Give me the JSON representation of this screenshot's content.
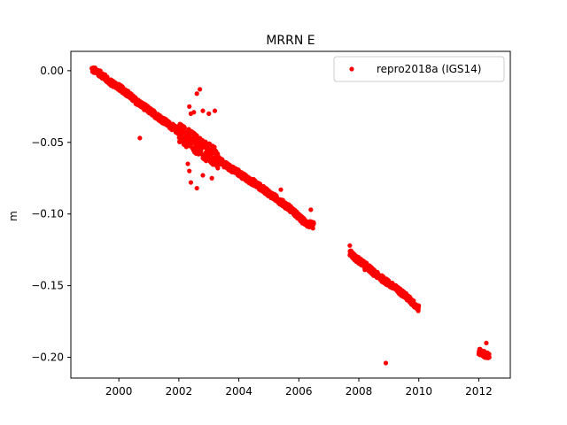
{
  "chart_data": {
    "type": "scatter",
    "title": "MRRN E",
    "xlabel": "",
    "ylabel": "m",
    "xlim": [
      1998.4,
      2013.05
    ],
    "ylim": [
      -0.2145,
      0.0135
    ],
    "xticks": [
      2000,
      2002,
      2004,
      2006,
      2008,
      2010,
      2012
    ],
    "xtick_labels": [
      "2000",
      "2002",
      "2004",
      "2006",
      "2008",
      "2010",
      "2012"
    ],
    "yticks": [
      0.0,
      -0.05,
      -0.1,
      -0.15,
      -0.2
    ],
    "ytick_labels": [
      "0.00",
      "−0.05",
      "−0.10",
      "−0.15",
      "−0.20"
    ],
    "grid": false,
    "legend_position": "top-right",
    "series": [
      {
        "name": "repro2018a (IGS14)",
        "color": "#ff0000",
        "marker": "circle",
        "segments": [
          {
            "x_start": 1999.1,
            "x_end": 2006.5,
            "points": [
              [
                1999.1,
                0.001
              ],
              [
                1999.3,
                -0.001
              ],
              [
                1999.5,
                -0.004
              ],
              [
                1999.7,
                -0.008
              ],
              [
                1999.9,
                -0.01
              ],
              [
                2000.1,
                -0.013
              ],
              [
                2000.3,
                -0.016
              ],
              [
                2000.5,
                -0.02
              ],
              [
                2000.7,
                -0.023
              ],
              [
                2000.9,
                -0.026
              ],
              [
                2001.1,
                -0.029
              ],
              [
                2001.3,
                -0.032
              ],
              [
                2001.5,
                -0.035
              ],
              [
                2001.7,
                -0.038
              ],
              [
                2001.9,
                -0.041
              ],
              [
                2002.1,
                -0.044
              ],
              [
                2002.3,
                -0.047
              ],
              [
                2002.5,
                -0.05
              ],
              [
                2002.7,
                -0.053
              ],
              [
                2002.9,
                -0.056
              ],
              [
                2003.1,
                -0.059
              ],
              [
                2003.3,
                -0.062
              ],
              [
                2003.5,
                -0.065
              ],
              [
                2003.7,
                -0.068
              ],
              [
                2003.9,
                -0.07
              ],
              [
                2004.1,
                -0.073
              ],
              [
                2004.3,
                -0.076
              ],
              [
                2004.5,
                -0.078
              ],
              [
                2004.7,
                -0.081
              ],
              [
                2004.9,
                -0.084
              ],
              [
                2005.1,
                -0.087
              ],
              [
                2005.3,
                -0.09
              ],
              [
                2005.5,
                -0.093
              ],
              [
                2005.7,
                -0.096
              ],
              [
                2005.9,
                -0.1
              ],
              [
                2006.1,
                -0.104
              ],
              [
                2006.3,
                -0.107
              ],
              [
                2006.5,
                -0.108
              ]
            ]
          },
          {
            "x_start": 2007.7,
            "x_end": 2010.0,
            "points": [
              [
                2007.7,
                -0.127
              ],
              [
                2007.9,
                -0.131
              ],
              [
                2008.1,
                -0.134
              ],
              [
                2008.3,
                -0.137
              ],
              [
                2008.5,
                -0.141
              ],
              [
                2008.7,
                -0.144
              ],
              [
                2008.9,
                -0.147
              ],
              [
                2009.1,
                -0.15
              ],
              [
                2009.3,
                -0.153
              ],
              [
                2009.5,
                -0.156
              ],
              [
                2009.7,
                -0.16
              ],
              [
                2009.9,
                -0.164
              ],
              [
                2010.0,
                -0.166
              ]
            ]
          },
          {
            "x_start": 2012.0,
            "x_end": 2012.35,
            "points": [
              [
                2012.0,
                -0.196
              ],
              [
                2012.1,
                -0.197
              ],
              [
                2012.2,
                -0.198
              ],
              [
                2012.3,
                -0.199
              ]
            ]
          }
        ],
        "outliers": [
          [
            2000.7,
            -0.047
          ],
          [
            2002.35,
            -0.025
          ],
          [
            2002.4,
            -0.03
          ],
          [
            2002.6,
            -0.016
          ],
          [
            2002.7,
            -0.013
          ],
          [
            2002.5,
            -0.029
          ],
          [
            2002.8,
            -0.028
          ],
          [
            2003.0,
            -0.03
          ],
          [
            2003.2,
            -0.028
          ],
          [
            2002.3,
            -0.065
          ],
          [
            2002.35,
            -0.07
          ],
          [
            2002.4,
            -0.078
          ],
          [
            2002.6,
            -0.082
          ],
          [
            2002.8,
            -0.073
          ],
          [
            2003.1,
            -0.075
          ],
          [
            2003.3,
            -0.068
          ],
          [
            2005.4,
            -0.083
          ],
          [
            2006.4,
            -0.097
          ],
          [
            2007.7,
            -0.122
          ],
          [
            2008.2,
            -0.139
          ],
          [
            2008.9,
            -0.204
          ],
          [
            2012.25,
            -0.19
          ]
        ]
      }
    ]
  }
}
